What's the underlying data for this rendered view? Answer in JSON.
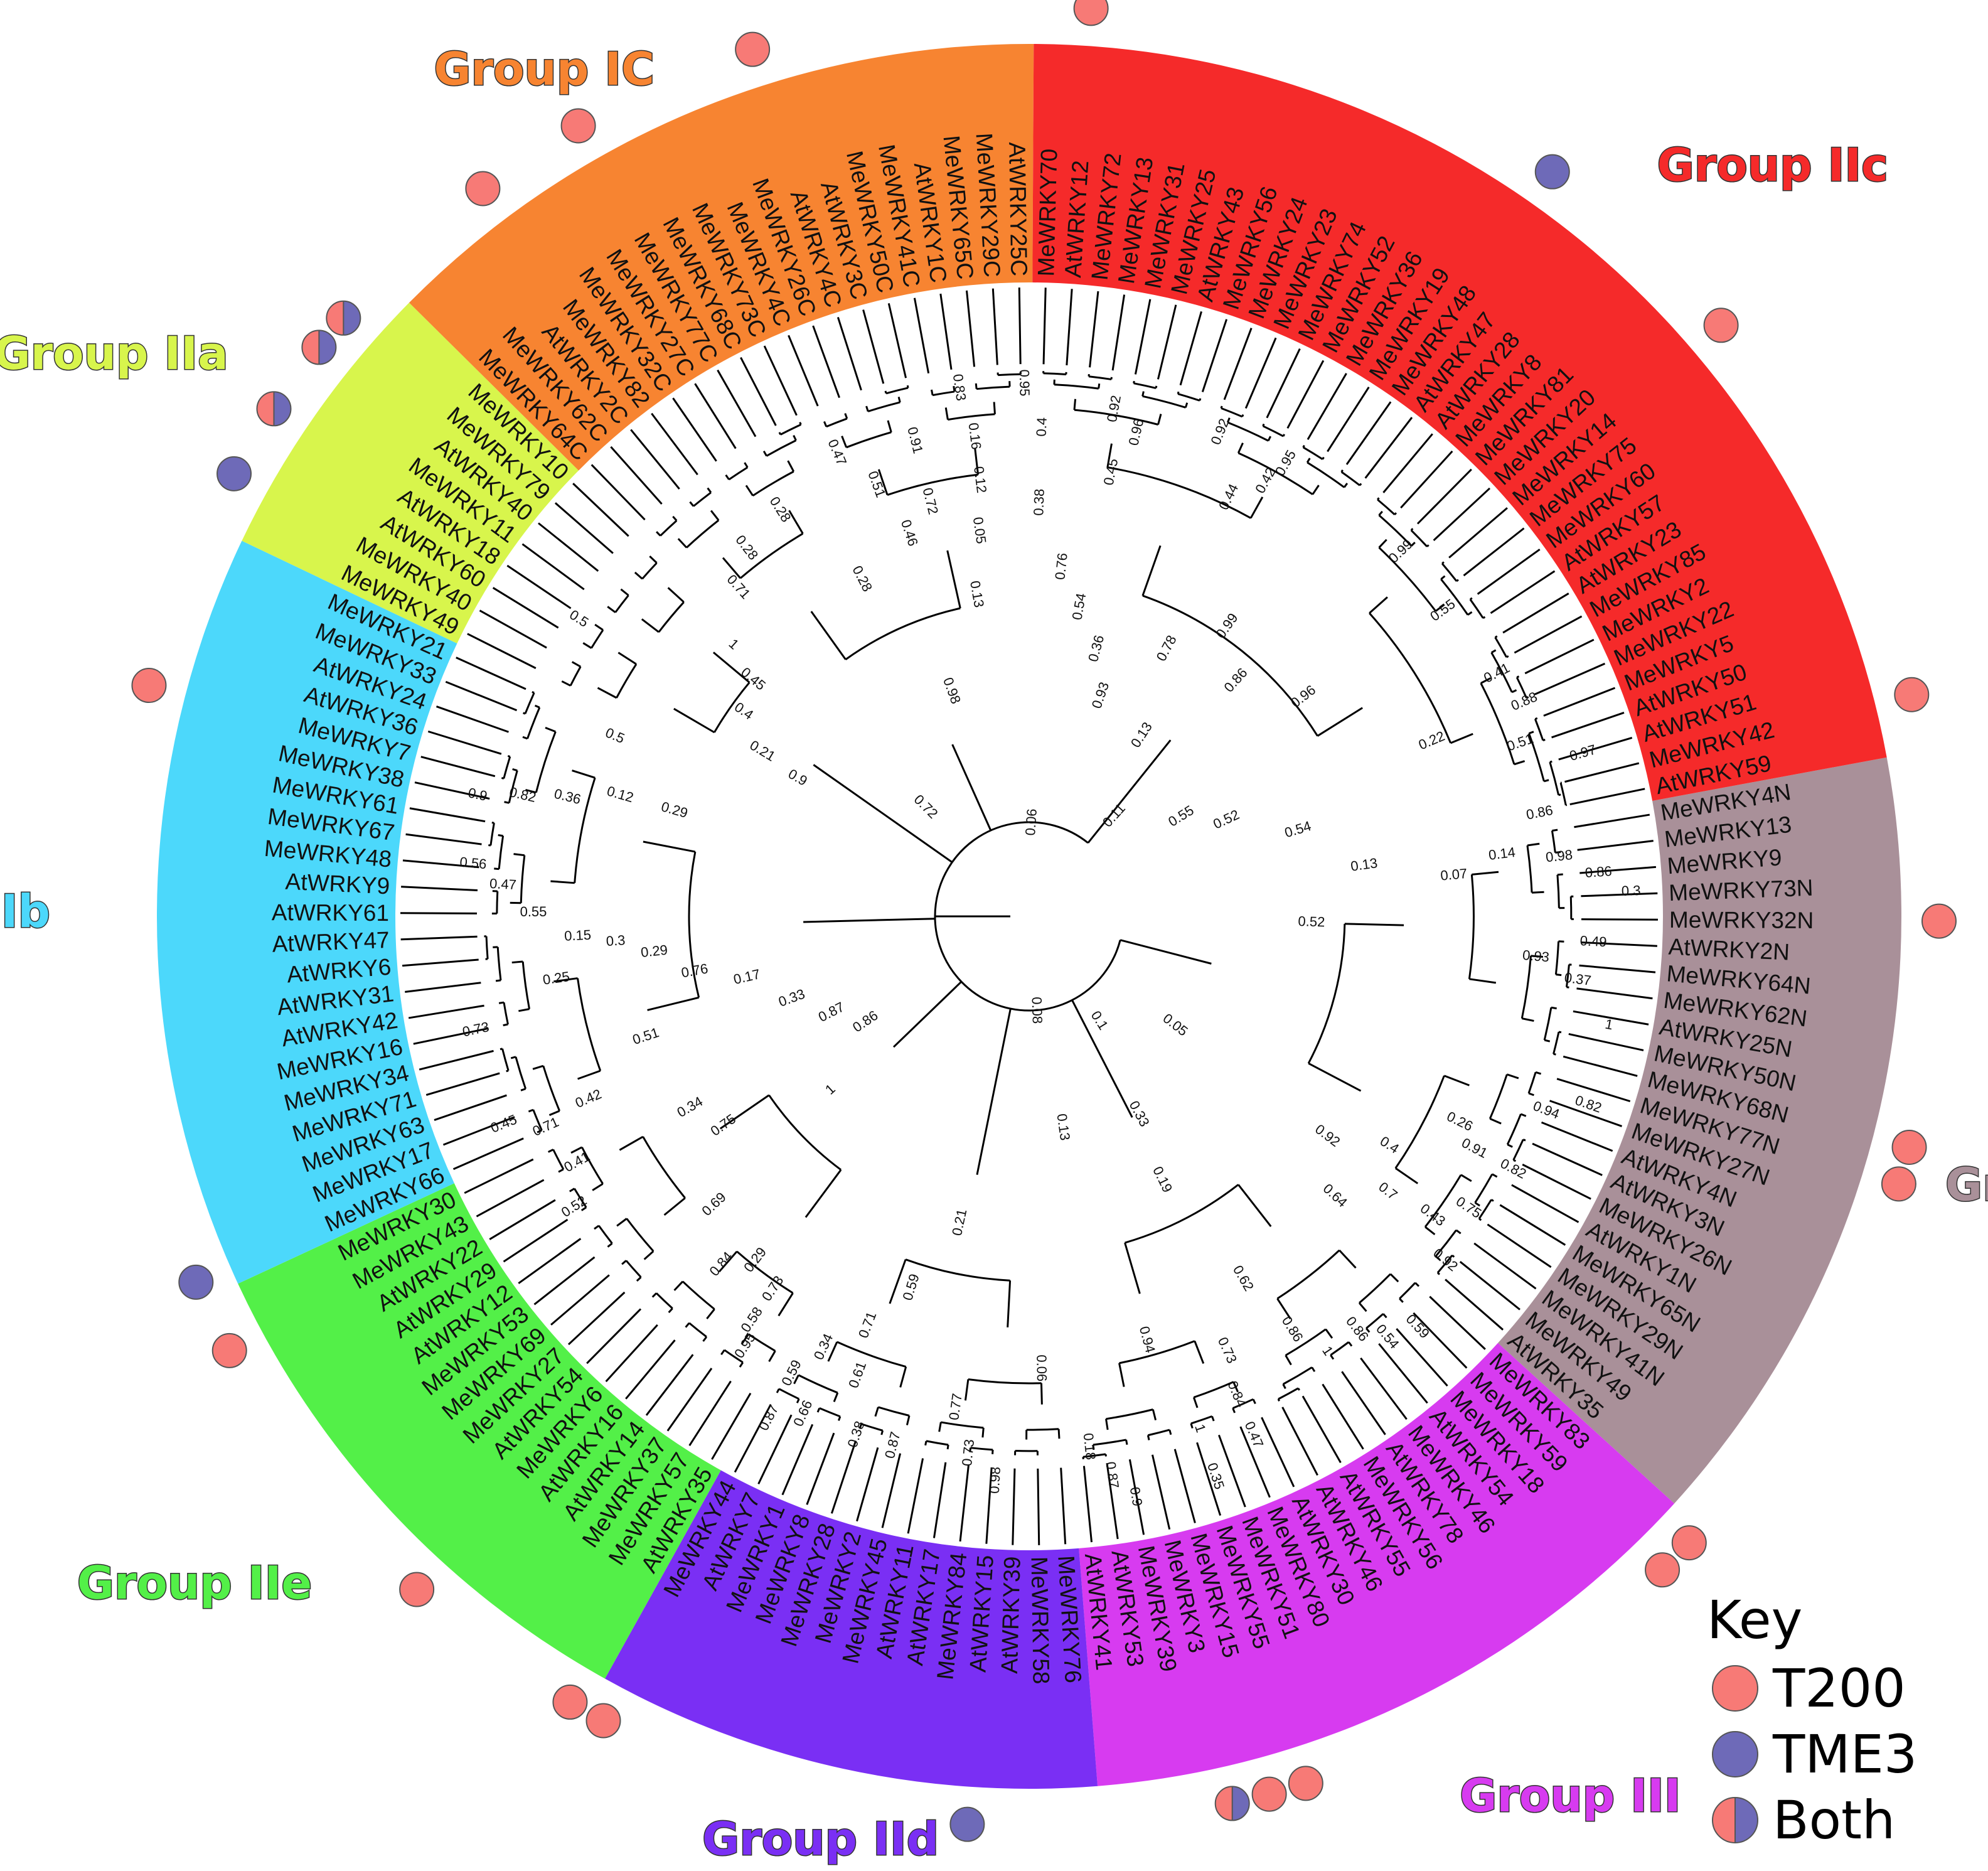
{
  "colors": {
    "t200": "#F77A76",
    "tme3": "#6E6AB8",
    "outline": "#555555"
  },
  "key": {
    "title": "Key",
    "items": [
      {
        "label": "T200",
        "type": "t200"
      },
      {
        "label": "TME3",
        "type": "tme3"
      },
      {
        "label": "Both",
        "type": "both"
      }
    ]
  },
  "groups": [
    {
      "name": "Group IN",
      "color": "#A99099",
      "leaves": [
        "MeWRKY4N",
        "MeWRKY13",
        "MeWRKY9",
        "MeWRKY73N",
        "MeWRKY32N",
        "AtWRKY2N",
        "MeWRKY64N",
        "MeWRKY62N",
        "AtWRKY25N",
        "MeWRKY50N",
        "MeWRKY68N",
        "MeWRKY77N",
        "MeWRKY27N",
        "AtWRKY4N",
        "AtWRKY3N",
        "MeWRKY26N",
        "AtWRKY1N",
        "MeWRKY65N",
        "MeWRKY29N",
        "MeWRKY41N",
        "MeWRKY49",
        "AtWRKY35"
      ]
    },
    {
      "name": "Group III",
      "color": "#D73BF0",
      "leaves": [
        "MeWRKY83",
        "MeWRKY59",
        "MeWRKY18",
        "AtWRKY54",
        "MeWRKY46",
        "AtWRKY78",
        "MeWRKY56",
        "AtWRKY55",
        "AtWRKY46",
        "AtWRKY30",
        "MeWRKY80",
        "MeWRKY51",
        "MeWRKY55",
        "MeWRKY15",
        "MeWRKY3",
        "MeWRKY39",
        "AtWRKY53",
        "AtWRKY41"
      ]
    },
    {
      "name": "Group IId",
      "color": "#7A2FF4",
      "leaves": [
        "MeWRKY76",
        "MeWRKY58",
        "AtWRKY39",
        "AtWRKY15",
        "MeWRKY84",
        "AtWRKY17",
        "AtWRKY11",
        "MeWRKY45",
        "MeWRKY2",
        "MeWRKY28",
        "MeWRKY8",
        "MeWRKY1",
        "AtWRKY7",
        "MeWRKY44"
      ]
    },
    {
      "name": "Group IIe",
      "color": "#53F048",
      "leaves": [
        "AtWRKY35",
        "MeWRKY57",
        "MeWRKY37",
        "AtWRKY14",
        "AtWRKY16",
        "MeWRKY6",
        "AtWRKY54",
        "MeWRKY27",
        "MeWRKY69",
        "MeWRKY53",
        "AtWRKY12",
        "AtWRKY29",
        "AtWRKY22",
        "MeWRKY43",
        "MeWRKY30"
      ]
    },
    {
      "name": "Group IIb",
      "color": "#4CD8FB",
      "leaves": [
        "MeWRKY66",
        "MeWRKY17",
        "MeWRKY63",
        "MeWRKY71",
        "MeWRKY34",
        "MeWRKY16",
        "AtWRKY42",
        "AtWRKY31",
        "AtWRKY6",
        "AtWRKY47",
        "AtWRKY61",
        "AtWRKY9",
        "MeWRKY48",
        "MeWRKY67",
        "MeWRKY61",
        "MeWRKY38",
        "MeWRKY7",
        "AtWRKY36",
        "AtWRKY24",
        "MeWRKY33",
        "MeWRKY21"
      ]
    },
    {
      "name": "Group IIa",
      "color": "#D8F54C",
      "leaves": [
        "MeWRKY49",
        "MeWRKY40",
        "AtWRKY60",
        "AtWRKY18",
        "MeWRKY11",
        "AtWRKY40",
        "MeWRKY79",
        "MeWRKY10"
      ]
    },
    {
      "name": "Group IC",
      "color": "#F78431",
      "leaves": [
        "MeWRKY64C",
        "MeWRKY62C",
        "AtWRKY2C",
        "MeWRKY82",
        "MeWRKY32C",
        "MeWRKY27C",
        "MeWRKY77C",
        "MeWRKY68C",
        "MeWRKY73C",
        "MeWRKY4C",
        "MeWRKY26C",
        "AtWRKY4C",
        "AtWRKY3C",
        "MeWRKY50C",
        "MeWRKY41C",
        "AtWRKY1C",
        "MeWRKY65C",
        "MeWRKY29C",
        "AtWRKY25C"
      ]
    },
    {
      "name": "Group IIc",
      "color": "#F52A2A",
      "leaves": [
        "MeWRKY70",
        "AtWRKY12",
        "MeWRKY72",
        "MeWRKY13",
        "MeWRKY31",
        "MeWRKY25",
        "AtWRKY43",
        "MeWRKY56",
        "MeWRKY24",
        "MeWRKY23",
        "MeWRKY74",
        "MeWRKY52",
        "MeWRKY36",
        "MeWRKY19",
        "MeWRKY48",
        "AtWRKY47",
        "AtWRKY28",
        "MeWRKY8",
        "MeWRKY81",
        "MeWRKY20",
        "MeWRKY14",
        "MeWRKY75",
        "MeWRKY60",
        "AtWRKY57",
        "AtWRKY23",
        "MeWRKY85",
        "MeWRKY2",
        "MeWRKY22",
        "MeWRKY5",
        "AtWRKY50",
        "AtWRKY51",
        "MeWRKY42",
        "AtWRKY59"
      ]
    }
  ],
  "markers": [
    {
      "group": 0,
      "leaf": 10,
      "type": "t200"
    },
    {
      "group": 0,
      "leaf": 11,
      "type": "t200"
    },
    {
      "group": 0,
      "leaf": 4,
      "type": "t200"
    },
    {
      "group": 1,
      "leaf": 0,
      "type": "t200"
    },
    {
      "group": 1,
      "leaf": 1,
      "type": "t200"
    },
    {
      "group": 1,
      "leaf": 12,
      "type": "t200"
    },
    {
      "group": 1,
      "leaf": 13,
      "type": "t200"
    },
    {
      "group": 1,
      "leaf": 14,
      "type": "both"
    },
    {
      "group": 2,
      "leaf": 3,
      "type": "tme3"
    },
    {
      "group": 2,
      "leaf": 13,
      "type": "t200"
    },
    {
      "group": 3,
      "leaf": 0,
      "type": "t200"
    },
    {
      "group": 3,
      "leaf": 5,
      "type": "t200"
    },
    {
      "group": 3,
      "leaf": 13,
      "type": "t200"
    },
    {
      "group": 4,
      "leaf": 0,
      "type": "tme3"
    },
    {
      "group": 4,
      "leaf": 16,
      "type": "t200"
    },
    {
      "group": 5,
      "leaf": 1,
      "type": "tme3"
    },
    {
      "group": 5,
      "leaf": 3,
      "type": "both"
    },
    {
      "group": 5,
      "leaf": 5,
      "type": "both"
    },
    {
      "group": 5,
      "leaf": 6,
      "type": "both"
    },
    {
      "group": 6,
      "leaf": 3,
      "type": "t200"
    },
    {
      "group": 6,
      "leaf": 6,
      "type": "t200"
    },
    {
      "group": 6,
      "leaf": 11,
      "type": "t200"
    },
    {
      "group": 7,
      "leaf": 1,
      "type": "t200"
    },
    {
      "group": 7,
      "leaf": 14,
      "type": "tme3"
    },
    {
      "group": 7,
      "leaf": 20,
      "type": "t200"
    },
    {
      "group": 7,
      "leaf": 31,
      "type": "t200"
    }
  ],
  "bootstrap": [
    {
      "value": "0.52",
      "angle": 2,
      "radius": 450
    },
    {
      "value": "0.05",
      "angle": 38,
      "radius": 290
    },
    {
      "value": "0.08",
      "angle": 88,
      "radius": 150
    },
    {
      "value": "0.06",
      "angle": 274,
      "radius": 150
    },
    {
      "value": "0.72",
      "angle": 225,
      "radius": 240
    },
    {
      "value": "0.9",
      "angle": 210,
      "radius": 430
    },
    {
      "value": "0.98",
      "angle": 250,
      "radius": 380
    },
    {
      "value": "0.11",
      "angle": 312,
      "radius": 210
    },
    {
      "value": "0.55",
      "angle": 328,
      "radius": 290
    },
    {
      "value": "0.52",
      "angle": 335,
      "radius": 350
    },
    {
      "value": "0.54",
      "angle": 343,
      "radius": 450
    },
    {
      "value": "0.13",
      "angle": 352,
      "radius": 540
    },
    {
      "value": "0.93",
      "angle": 289,
      "radius": 370
    },
    {
      "value": "0.13",
      "angle": 303,
      "radius": 340
    },
    {
      "value": "0.96",
      "angle": 322,
      "radius": 560
    },
    {
      "value": "0.86",
      "angle": 312,
      "radius": 500
    },
    {
      "value": "0.99",
      "angle": 305,
      "radius": 560
    },
    {
      "value": "0.78",
      "angle": 298,
      "radius": 480
    },
    {
      "value": "0.36",
      "angle": 285,
      "radius": 440
    },
    {
      "value": "0.54",
      "angle": 280,
      "radius": 500
    },
    {
      "value": "0.76",
      "angle": 276,
      "radius": 560
    },
    {
      "value": "0.38",
      "angle": 272,
      "radius": 660
    },
    {
      "value": "0.45",
      "angle": 281,
      "radius": 720
    },
    {
      "value": "0.92",
      "angle": 280,
      "radius": 820
    },
    {
      "value": "0.96",
      "angle": 283,
      "radius": 790
    },
    {
      "value": "0.4",
      "angle": 272,
      "radius": 780
    },
    {
      "value": "0.95",
      "angle": 269,
      "radius": 850
    },
    {
      "value": "0.83",
      "angle": 262,
      "radius": 850
    },
    {
      "value": "0.16",
      "angle": 263,
      "radius": 770
    },
    {
      "value": "0.12",
      "angle": 263,
      "radius": 700
    },
    {
      "value": "0.05",
      "angle": 262,
      "radius": 620
    },
    {
      "value": "0.13",
      "angle": 260,
      "radius": 520
    },
    {
      "value": "0.72",
      "angle": 256,
      "radius": 680
    },
    {
      "value": "0.46",
      "angle": 252,
      "radius": 640
    },
    {
      "value": "0.51",
      "angle": 250,
      "radius": 730
    },
    {
      "value": "0.91",
      "angle": 256,
      "radius": 780
    },
    {
      "value": "0.47",
      "angle": 247,
      "radius": 800
    },
    {
      "value": "0.28",
      "angle": 243,
      "radius": 600
    },
    {
      "value": "0.28",
      "angle": 238,
      "radius": 760
    },
    {
      "value": "0.28",
      "angle": 232,
      "radius": 740
    },
    {
      "value": "0.71",
      "angle": 228,
      "radius": 700
    },
    {
      "value": "1",
      "angle": 222,
      "radius": 640
    },
    {
      "value": "0.45",
      "angle": 220,
      "radius": 580
    },
    {
      "value": "0.4",
      "angle": 215,
      "radius": 560
    },
    {
      "value": "0.21",
      "angle": 211,
      "radius": 500
    },
    {
      "value": "0.29",
      "angle": 196,
      "radius": 590
    },
    {
      "value": "0.12",
      "angle": 196,
      "radius": 680
    },
    {
      "value": "0.36",
      "angle": 194,
      "radius": 760
    },
    {
      "value": "0.82",
      "angle": 193,
      "radius": 830
    },
    {
      "value": "0.9",
      "angle": 192,
      "radius": 900
    },
    {
      "value": "0.5",
      "angle": 203,
      "radius": 720
    },
    {
      "value": "0.5",
      "angle": 213,
      "radius": 860
    },
    {
      "value": "0.56",
      "angle": 185,
      "radius": 890
    },
    {
      "value": "0.47",
      "angle": 183,
      "radius": 840
    },
    {
      "value": "0.55",
      "angle": 180,
      "radius": 790
    },
    {
      "value": "0.15",
      "angle": 177,
      "radius": 720
    },
    {
      "value": "0.3",
      "angle": 176,
      "radius": 660
    },
    {
      "value": "0.29",
      "angle": 174,
      "radius": 600
    },
    {
      "value": "0.25",
      "angle": 172,
      "radius": 760
    },
    {
      "value": "0.73",
      "angle": 168,
      "radius": 900
    },
    {
      "value": "0.76",
      "angle": 170,
      "radius": 540
    },
    {
      "value": "0.17",
      "angle": 167,
      "radius": 460
    },
    {
      "value": "0.33",
      "angle": 160,
      "radius": 400
    },
    {
      "value": "0.87",
      "angle": 153,
      "radius": 350
    },
    {
      "value": "0.86",
      "angle": 146,
      "radius": 310
    },
    {
      "value": "0.51",
      "angle": 162,
      "radius": 640
    },
    {
      "value": "0.45",
      "angle": 158,
      "radius": 900
    },
    {
      "value": "0.71",
      "angle": 156,
      "radius": 840
    },
    {
      "value": "0.42",
      "angle": 157,
      "radius": 760
    },
    {
      "value": "0.41",
      "angle": 151,
      "radius": 820
    },
    {
      "value": "0.52",
      "angle": 147,
      "radius": 860
    },
    {
      "value": "0.34",
      "angle": 150,
      "radius": 620
    },
    {
      "value": "0.75",
      "angle": 145,
      "radius": 590
    },
    {
      "value": "1",
      "angle": 138,
      "radius": 420
    },
    {
      "value": "0.69",
      "angle": 137,
      "radius": 680
    },
    {
      "value": "0.84",
      "angle": 131,
      "radius": 740
    },
    {
      "value": "0.29",
      "angle": 128,
      "radius": 700
    },
    {
      "value": "0.73",
      "angle": 124,
      "radius": 720
    },
    {
      "value": "0.58",
      "angle": 124,
      "radius": 780
    },
    {
      "value": "0.95",
      "angle": 123,
      "radius": 820
    },
    {
      "value": "0.1",
      "angle": 58,
      "radius": 200
    },
    {
      "value": "0.33",
      "angle": 62,
      "radius": 360
    },
    {
      "value": "0.19",
      "angle": 64,
      "radius": 470
    },
    {
      "value": "0.13",
      "angle": 82,
      "radius": 340
    },
    {
      "value": "0.21",
      "angle": 102,
      "radius": 500
    },
    {
      "value": "0.59",
      "angle": 107,
      "radius": 620
    },
    {
      "value": "0.71",
      "angle": 111,
      "radius": 700
    },
    {
      "value": "0.34",
      "angle": 115,
      "radius": 760
    },
    {
      "value": "0.59",
      "angle": 117,
      "radius": 820
    },
    {
      "value": "0.66",
      "angle": 114,
      "radius": 870
    },
    {
      "value": "0.87",
      "angle": 117,
      "radius": 900
    },
    {
      "value": "0.61",
      "angle": 110,
      "radius": 780
    },
    {
      "value": "0.38",
      "angle": 108,
      "radius": 870
    },
    {
      "value": "0.87",
      "angle": 104,
      "radius": 870
    },
    {
      "value": "0.77",
      "angle": 98,
      "radius": 790
    },
    {
      "value": "0.73",
      "angle": 96,
      "radius": 860
    },
    {
      "value": "0.98",
      "angle": 93,
      "radius": 900
    },
    {
      "value": "0.06",
      "angle": 89,
      "radius": 720
    },
    {
      "value": "0.18",
      "angle": 84,
      "radius": 850
    },
    {
      "value": "0.87",
      "angle": 82,
      "radius": 900
    },
    {
      "value": "0.9",
      "angle": 80,
      "radius": 940
    },
    {
      "value": "0.94",
      "angle": 75,
      "radius": 700
    },
    {
      "value": "1",
      "angle": 72,
      "radius": 860
    },
    {
      "value": "0.35",
      "angle": 72,
      "radius": 940
    },
    {
      "value": "0.62",
      "angle": 60,
      "radius": 670
    },
    {
      "value": "0.73",
      "angle": 66,
      "radius": 760
    },
    {
      "value": "0.84",
      "angle": 67,
      "radius": 830
    },
    {
      "value": "0.47",
      "angle": 67,
      "radius": 900
    },
    {
      "value": "0.86",
      "angle": 58,
      "radius": 780
    },
    {
      "value": "1",
      "angle": 56,
      "radius": 840
    },
    {
      "value": "0.86",
      "angle": 52,
      "radius": 840
    },
    {
      "value": "0.54",
      "angle": 50,
      "radius": 880
    },
    {
      "value": "0.59",
      "angle": 47,
      "radius": 900
    },
    {
      "value": "0.64",
      "angle": 43,
      "radius": 660
    },
    {
      "value": "0.92",
      "angle": 37,
      "radius": 590
    },
    {
      "value": "0.4",
      "angle": 33,
      "radius": 680
    },
    {
      "value": "0.7",
      "angle": 38,
      "radius": 720
    },
    {
      "value": "0.43",
      "angle": 37,
      "radius": 800
    },
    {
      "value": "0.92",
      "angle": 40,
      "radius": 860
    },
    {
      "value": "0.75",
      "angle": 34,
      "radius": 840
    },
    {
      "value": "0.26",
      "angle": 26,
      "radius": 760
    },
    {
      "value": "0.91",
      "angle": 28,
      "radius": 800
    },
    {
      "value": "0.82",
      "angle": 28,
      "radius": 870
    },
    {
      "value": "0.94",
      "angle": 21,
      "radius": 880
    },
    {
      "value": "0.82",
      "angle": 19,
      "radius": 940
    },
    {
      "value": "1",
      "angle": 11,
      "radius": 940
    },
    {
      "value": "0.37",
      "angle": 7,
      "radius": 880
    },
    {
      "value": "0.93",
      "angle": 5,
      "radius": 810
    },
    {
      "value": "0.49",
      "angle": 3,
      "radius": 900
    },
    {
      "value": "0.51",
      "angle": 341,
      "radius": 830
    },
    {
      "value": "0.88",
      "angle": 337,
      "radius": 860
    },
    {
      "value": "0.41",
      "angle": 333,
      "radius": 840
    },
    {
      "value": "0.22",
      "angle": 337,
      "radius": 700
    },
    {
      "value": "0.97",
      "angle": 344,
      "radius": 920
    },
    {
      "value": "0.86",
      "angle": 349,
      "radius": 830
    },
    {
      "value": "0.07",
      "angle": 355,
      "radius": 680
    },
    {
      "value": "0.14",
      "angle": 353,
      "radius": 760
    },
    {
      "value": "0.98",
      "angle": 354,
      "radius": 850
    },
    {
      "value": "0.86",
      "angle": 356,
      "radius": 910
    },
    {
      "value": "0.3",
      "angle": 358,
      "radius": 960
    },
    {
      "value": "0.55",
      "angle": 324,
      "radius": 820
    },
    {
      "value": "0.99",
      "angle": 316,
      "radius": 830
    },
    {
      "value": "0.95",
      "angle": 300,
      "radius": 830
    },
    {
      "value": "0.42",
      "angle": 299,
      "radius": 790
    },
    {
      "value": "0.44",
      "angle": 296,
      "radius": 740
    },
    {
      "value": "0.92",
      "angle": 292,
      "radius": 830
    }
  ]
}
